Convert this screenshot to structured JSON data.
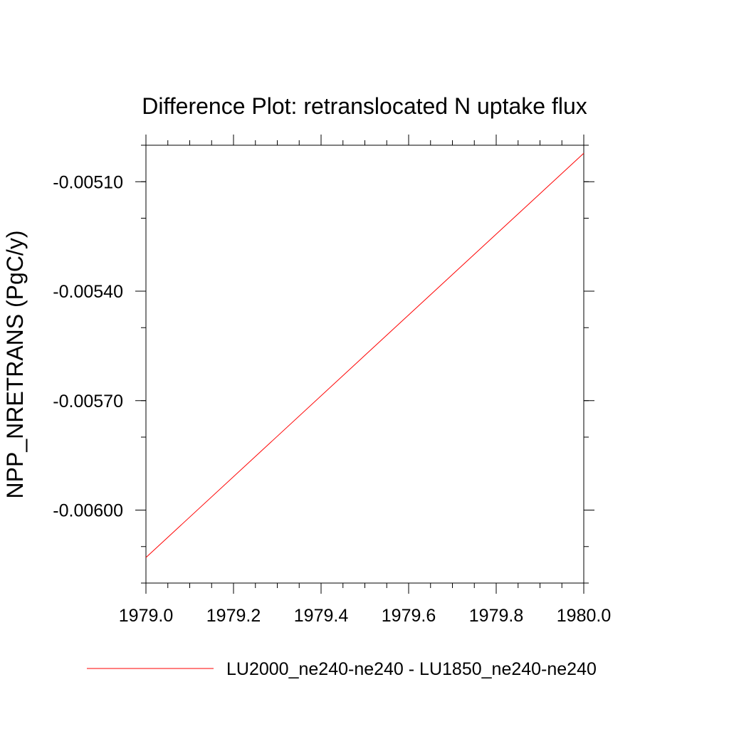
{
  "chart_data": {
    "type": "line",
    "title": "Difference Plot: retranslocated N uptake flux",
    "ylabel": "NPP_NRETRANS  (PgC/y)",
    "xlabel": "",
    "xlim": [
      1979.0,
      1980.0
    ],
    "ylim": [
      -0.0062,
      -0.005
    ],
    "x_ticks": [
      1979.0,
      1979.2,
      1979.4,
      1979.6,
      1979.8,
      1980.0
    ],
    "x_tick_labels": [
      "1979.0",
      "1979.2",
      "1979.4",
      "1979.6",
      "1979.8",
      "1980.0"
    ],
    "y_ticks": [
      -0.006,
      -0.0057,
      -0.0054,
      -0.0051
    ],
    "y_tick_labels": [
      "-0.00600",
      "-0.00570",
      "-0.00540",
      "-0.00510"
    ],
    "grid": false,
    "legend_placement": "bottom",
    "series": [
      {
        "name": "LU2000_ne240-ne240 - LU1850_ne240-ne240",
        "color": "#ff0000",
        "x": [
          1979.0,
          1980.0
        ],
        "y": [
          -0.00613,
          -0.005022
        ]
      }
    ]
  }
}
